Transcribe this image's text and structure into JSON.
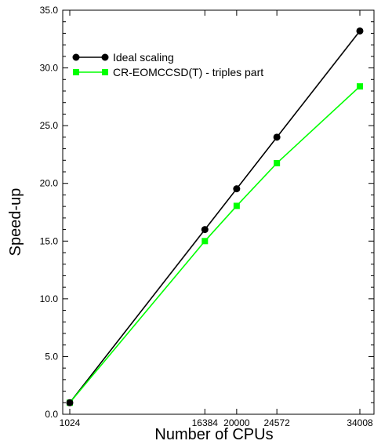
{
  "chart_data": {
    "type": "line",
    "xlabel": "Number of CPUs",
    "ylabel": "Speed-up",
    "xlim": [
      1024,
      34008
    ],
    "ylim": [
      0,
      35
    ],
    "x_ticks": [
      1024,
      16384,
      20000,
      24572,
      34008
    ],
    "y_ticks": [
      "0.0",
      "5.0",
      "10.0",
      "15.0",
      "20.0",
      "25.0",
      "30.0",
      "35.0"
    ],
    "grid": false,
    "legend_position": "top-left",
    "series": [
      {
        "name": "Ideal scaling",
        "color": "#000000",
        "marker": "circle",
        "x": [
          1024,
          16384,
          20000,
          24572,
          34008
        ],
        "y": [
          1.0,
          16.0,
          19.53,
          24.0,
          33.2
        ]
      },
      {
        "name": "CR-EOMCCSD(T) - triples part",
        "color": "#00ff00",
        "marker": "square",
        "x": [
          1024,
          16384,
          20000,
          24572,
          34008
        ],
        "y": [
          1.0,
          15.0,
          18.05,
          21.75,
          28.4
        ]
      }
    ]
  }
}
